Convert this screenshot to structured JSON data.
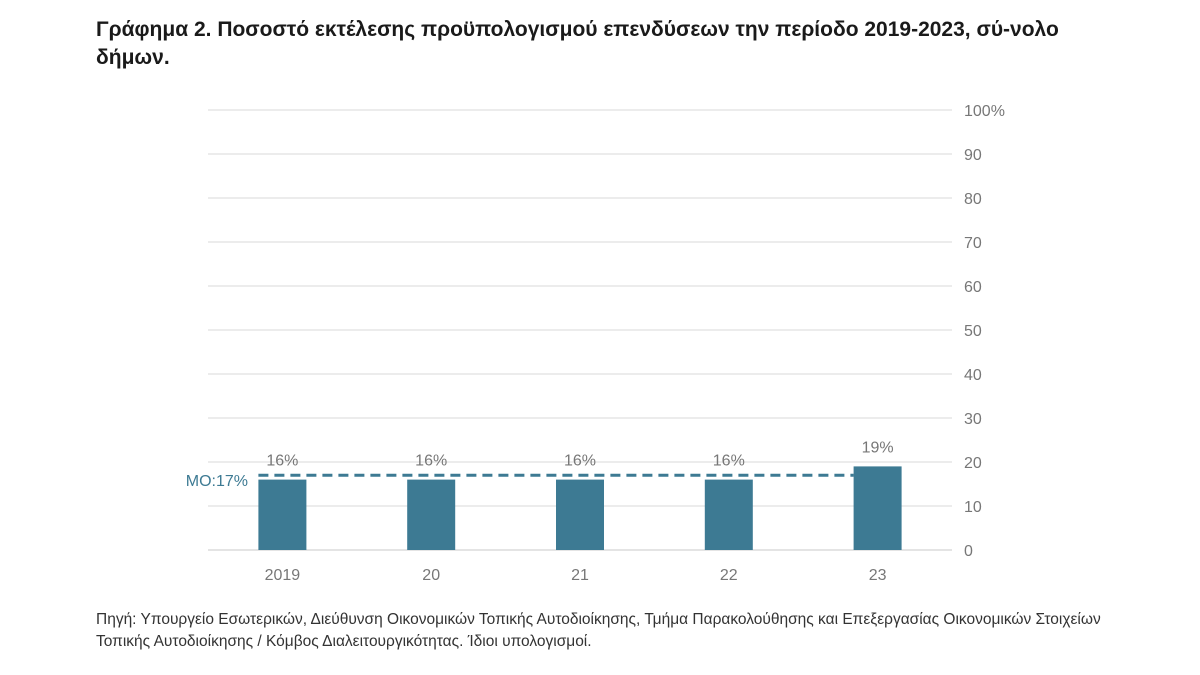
{
  "title": "Γράφημα 2. Ποσοστό εκτέλεσης προϋπολογισμού επενδύσεων την περίοδο 2019-2023, σύ-νολο δήμων.",
  "source": "Πηγή: Υπουργείο Εσωτερικών, Διεύθυνση Οικονομικών Τοπικής Αυτοδιοίκησης, Τμήμα Παρακολούθησης και Επεξεργασίας Οικονομικών Στοιχείων Τοπικής Αυτοδιοίκησης / Κόμβος Διαλειτουργικότητας. Ίδιοι υπολογισμοί.",
  "colors": {
    "bar": "#3d7a93",
    "average_line": "#3d7a93",
    "grid": "#d9d9d9",
    "tick_text": "#777777"
  },
  "chart_data": {
    "type": "bar",
    "categories": [
      "2019",
      "20",
      "21",
      "22",
      "23"
    ],
    "values": [
      16,
      16,
      16,
      16,
      19
    ],
    "data_labels": [
      "16%",
      "16%",
      "16%",
      "16%",
      "19%"
    ],
    "ylim": [
      0,
      100
    ],
    "yticks": [
      0,
      10,
      20,
      30,
      40,
      50,
      60,
      70,
      80,
      90,
      100
    ],
    "ytick_labels": [
      "0",
      "10",
      "20",
      "30",
      "40",
      "50",
      "60",
      "70",
      "80",
      "90",
      "100%"
    ],
    "y_axis_side": "right",
    "grid": true,
    "average": {
      "value": 17,
      "label": "ΜΟ:17%",
      "style": "dashed"
    }
  }
}
